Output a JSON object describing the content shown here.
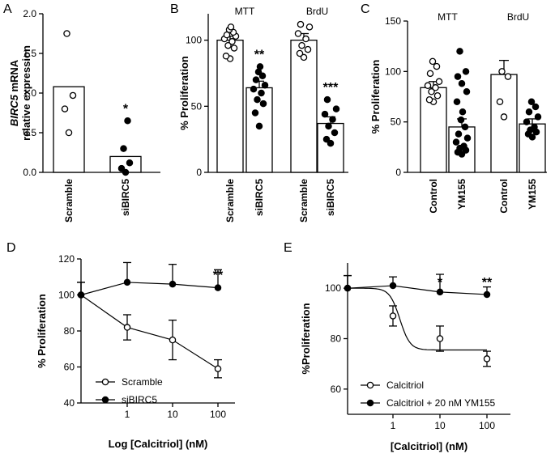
{
  "chart_data": [
    {
      "panel": "A",
      "type": "bar",
      "ylabel_italic": "BIRC5",
      "ylabel_rest": "mRNA",
      "ylabel_line2": "relative expression",
      "ylim": [
        0,
        2.0
      ],
      "yticks": [
        "0.0",
        "0.5",
        "1.0",
        "1.5",
        "2.0"
      ],
      "categories": [
        "Scramble",
        "siBIRC5"
      ],
      "values": [
        1.08,
        0.2
      ],
      "errors": [
        0,
        0
      ],
      "points": [
        [
          0.5,
          0.8,
          0.97,
          1.75
        ],
        [
          0.0,
          0.05,
          0.12,
          0.3,
          0.65
        ]
      ],
      "fills": [
        "open",
        "filled"
      ],
      "significance": [
        "",
        "*"
      ]
    },
    {
      "panel": "B",
      "type": "bar",
      "ylabel": "% Proliferation",
      "ylim": [
        0,
        120
      ],
      "yticks": [
        "0",
        "50",
        "100"
      ],
      "groups": [
        "MTT",
        "BrdU"
      ],
      "categories": [
        "Scramble",
        "siBIRC5",
        "Scramble",
        "siBIRC5"
      ],
      "values": [
        100,
        64,
        100,
        37
      ],
      "errors": [
        3,
        5,
        5,
        5
      ],
      "points": [
        [
          86,
          88,
          94,
          96,
          99,
          101,
          103,
          104,
          106,
          108,
          110
        ],
        [
          35,
          45,
          52,
          55,
          60,
          63,
          66,
          70,
          73,
          76,
          80
        ],
        [
          87,
          90,
          93,
          96,
          101,
          105,
          110,
          112
        ],
        [
          22,
          25,
          30,
          35,
          40,
          44,
          48,
          55
        ]
      ],
      "fills": [
        "open",
        "filled",
        "open",
        "filled"
      ],
      "significance": [
        "",
        "**",
        "",
        "***"
      ]
    },
    {
      "panel": "C",
      "type": "bar",
      "ylabel": "% Proliferation",
      "ylim": [
        0,
        150
      ],
      "yticks": [
        "0",
        "50",
        "100",
        "150"
      ],
      "groups": [
        "MTT",
        "BrdU"
      ],
      "categories": [
        "Control",
        "YM155",
        "Control",
        "YM155"
      ],
      "values": [
        84,
        45,
        97,
        48
      ],
      "errors": [
        6,
        8,
        14,
        5
      ],
      "points": [
        [
          70,
          72,
          76,
          80,
          84,
          86,
          90,
          98,
          105,
          110
        ],
        [
          18,
          20,
          22,
          24,
          26,
          30,
          34,
          38,
          45,
          52,
          60,
          70,
          80,
          88,
          95,
          100,
          120
        ],
        [
          55,
          70,
          95,
          100
        ],
        [
          35,
          38,
          40,
          42,
          45,
          50,
          55,
          60,
          65,
          70
        ]
      ],
      "fills": [
        "open",
        "filled",
        "open",
        "filled"
      ],
      "significance": [
        "",
        "",
        "",
        ""
      ]
    },
    {
      "panel": "D",
      "type": "line",
      "xlabel": "Log [Calcitriol] (nM)",
      "ylabel": "% Proliferation",
      "xscale": "log",
      "xticks": [
        "1",
        "10",
        "100"
      ],
      "ylim": [
        40,
        120
      ],
      "yticks": [
        "40",
        "60",
        "80",
        "100",
        "120"
      ],
      "series": [
        {
          "name": "Scramble",
          "marker": "open",
          "x": [
            0.1,
            1,
            10,
            100
          ],
          "values": [
            100,
            82,
            75,
            59
          ],
          "errors": [
            7,
            7,
            11,
            5
          ]
        },
        {
          "name": "siBIRC5",
          "marker": "filled",
          "x": [
            0.1,
            1,
            10,
            100
          ],
          "values": [
            100,
            107,
            106,
            104
          ],
          "errors": [
            7,
            11,
            11,
            10
          ]
        }
      ],
      "annotations": [
        {
          "x": 100,
          "text": "**"
        }
      ]
    },
    {
      "panel": "E",
      "type": "line",
      "xlabel": "[Calcitriol] (nM)",
      "ylabel": "%Proliferation",
      "xscale": "log",
      "xticks": [
        "1",
        "10",
        "100"
      ],
      "ylim": [
        50,
        110
      ],
      "yticks": [
        "60",
        "80",
        "100"
      ],
      "series": [
        {
          "name": "Calcitriol",
          "marker": "open",
          "fit": "sigmoid",
          "top": 100,
          "bottom": 75.5,
          "ec50": 1.4,
          "x": [
            0.1,
            1,
            10,
            100
          ],
          "values": [
            100,
            89,
            80,
            72
          ],
          "errors": [
            5,
            4,
            5,
            3
          ]
        },
        {
          "name": "Calcitriol + 20 nM YM155",
          "marker": "filled",
          "x": [
            0.1,
            1,
            10,
            100
          ],
          "values": [
            100,
            101,
            98.5,
            97.5
          ],
          "errors": [
            5,
            3.5,
            7,
            3
          ]
        }
      ],
      "annotations": [
        {
          "x": 10,
          "text": "*"
        },
        {
          "x": 100,
          "text": "**"
        }
      ]
    }
  ]
}
